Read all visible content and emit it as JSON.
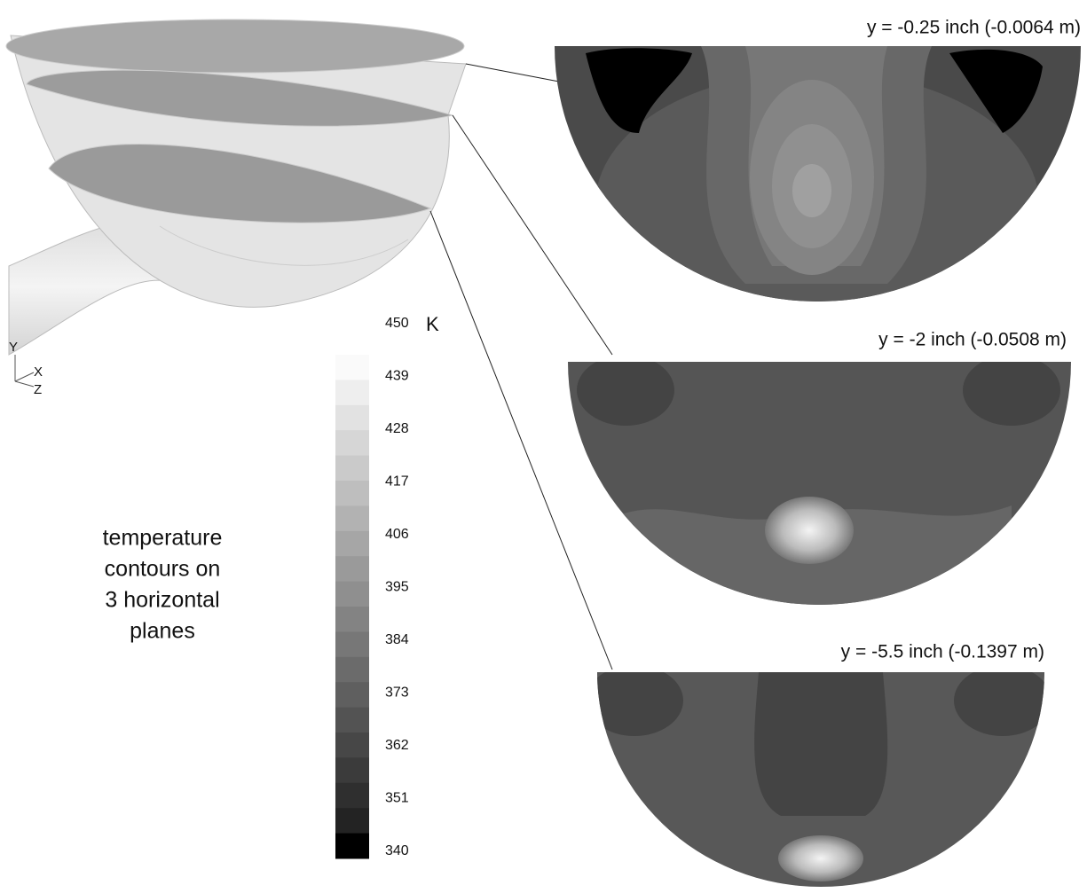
{
  "planes": [
    {
      "title": "y = -0.25 inch (-0.0064  m)"
    },
    {
      "title": "y = -2 inch (-0.0508  m)"
    },
    {
      "title": "y = -5.5 inch (-0.1397  m)"
    }
  ],
  "colorbar": {
    "unit": "K",
    "ticks": [
      450,
      439,
      428,
      417,
      406,
      395,
      384,
      373,
      362,
      351,
      340
    ]
  },
  "caption": [
    "temperature",
    "contours on",
    "3 horizontal",
    "planes"
  ],
  "axes": {
    "y": "Y",
    "x": "X",
    "z": "Z"
  }
}
